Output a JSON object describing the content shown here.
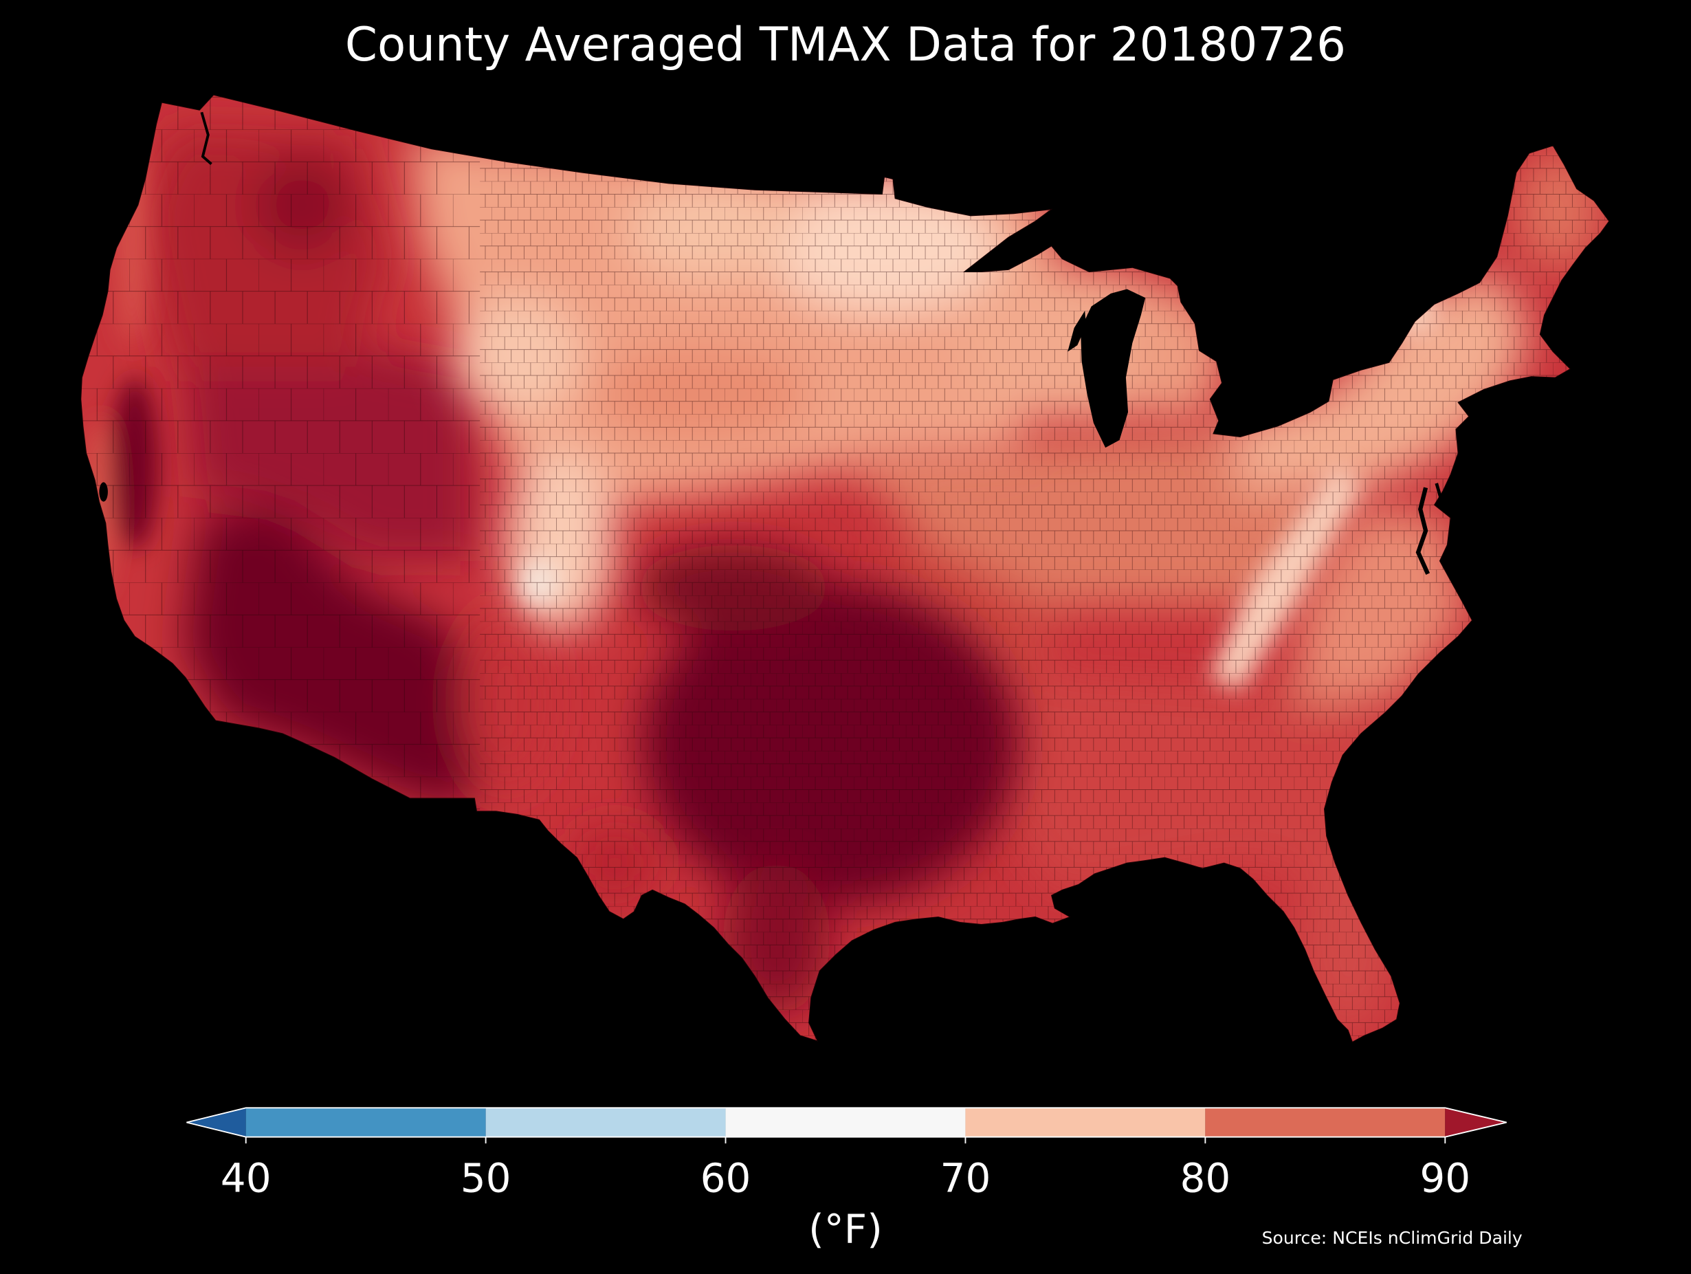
{
  "title": "County Averaged TMAX Data for 20180726",
  "background_color": "#000000",
  "colorbar": {
    "label": "(°F)",
    "ticks": [
      40,
      50,
      60,
      70,
      80,
      90
    ],
    "bins": [
      {
        "from": 40,
        "to": 50,
        "color": "#4393c3"
      },
      {
        "from": 50,
        "to": 60,
        "color": "#b6d7ea"
      },
      {
        "from": 60,
        "to": 70,
        "color": "#f7f7f7"
      },
      {
        "from": 70,
        "to": 80,
        "color": "#f9c4a9"
      },
      {
        "from": 80,
        "to": 90,
        "color": "#dc6b57"
      }
    ],
    "extend_min_color": "#1f5c9d",
    "extend_max_color": "#a0172b",
    "outline_color": "#ffffff"
  },
  "source": "Source: NCEIs nClimGrid Daily"
}
